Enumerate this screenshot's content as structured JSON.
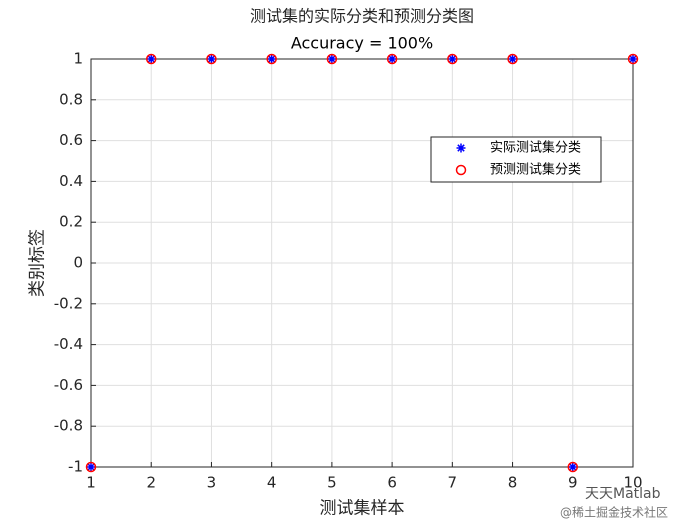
{
  "chart_data": {
    "type": "scatter",
    "title": "测试集的实际分类和预测分类图",
    "subtitle": "Accuracy = 100%",
    "x_label": "测试集样本",
    "y_label": "类别标签",
    "x": [
      1,
      2,
      3,
      4,
      5,
      6,
      7,
      8,
      9,
      10
    ],
    "series": [
      {
        "name": "实际测试集分类",
        "color": "#0000ff",
        "marker": "asterisk",
        "values": [
          -1,
          1,
          1,
          1,
          1,
          1,
          1,
          1,
          -1,
          1
        ]
      },
      {
        "name": "预测测试集分类",
        "color": "#ff0000",
        "marker": "circle",
        "values": [
          -1,
          1,
          1,
          1,
          1,
          1,
          1,
          1,
          -1,
          1
        ]
      }
    ],
    "xlim": [
      1,
      10
    ],
    "xticks": [
      1,
      2,
      3,
      4,
      5,
      6,
      7,
      8,
      9,
      10
    ],
    "ylim": [
      -1,
      1
    ],
    "yticks": [
      -1,
      -0.8,
      -0.6,
      -0.4,
      -0.2,
      0,
      0.2,
      0.4,
      0.6,
      0.8,
      1
    ],
    "grid": true,
    "watermark": [
      "天天Matlab",
      "@稀土掘金技术社区"
    ]
  }
}
